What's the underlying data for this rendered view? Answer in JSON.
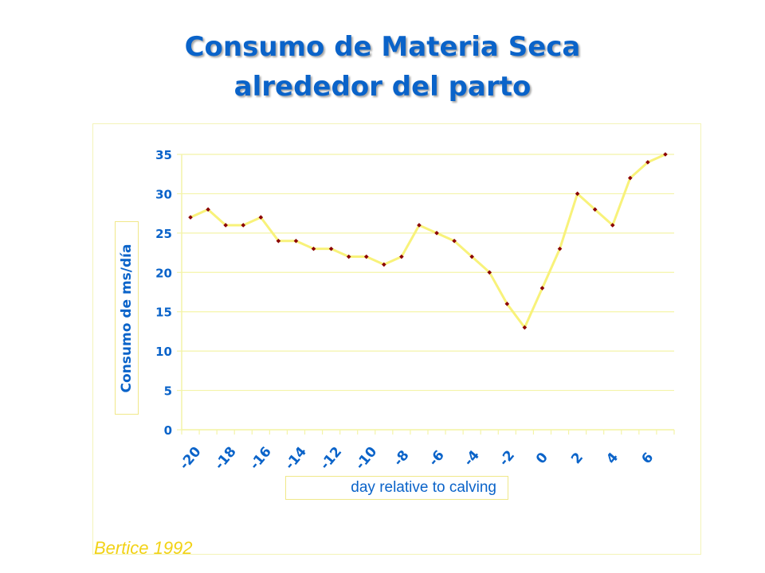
{
  "title_line1": "Consumo de Materia Seca",
  "title_line2": "alrededor del parto",
  "source": "Bertice 1992",
  "colors": {
    "title": "#0a63c9",
    "line": "#f8f27a",
    "marker": "#8b0000",
    "source": "#f2d216",
    "grid": "#f4f4a8"
  },
  "chart_data": {
    "type": "line",
    "title": "",
    "xlabel": "day relative to calving",
    "ylabel": "Consumo de ms/día",
    "x": [
      -20,
      -19,
      -18,
      -17,
      -16,
      -15,
      -14,
      -13,
      -12,
      -11,
      -10,
      -9,
      -8,
      -7,
      -6,
      -5,
      -4,
      -3,
      -2,
      -1,
      0,
      1,
      2,
      3,
      4,
      5,
      6,
      7
    ],
    "y": [
      27,
      28,
      26,
      26,
      27,
      24,
      24,
      23,
      23,
      22,
      22,
      21,
      22,
      26,
      25,
      24,
      22,
      20,
      16,
      13,
      18,
      23,
      30,
      28,
      26,
      32,
      34,
      35
    ],
    "x_tick_labels": [
      "-20",
      "-18",
      "-16",
      "-14",
      "-12",
      "-10",
      "-8",
      "-6",
      "-4",
      "-2",
      "0",
      "2",
      "4",
      "6"
    ],
    "y_tick_labels": [
      "0",
      "5",
      "10",
      "15",
      "20",
      "25",
      "30",
      "35"
    ],
    "ylim": [
      0,
      35
    ],
    "grid": true,
    "legend": "none"
  }
}
